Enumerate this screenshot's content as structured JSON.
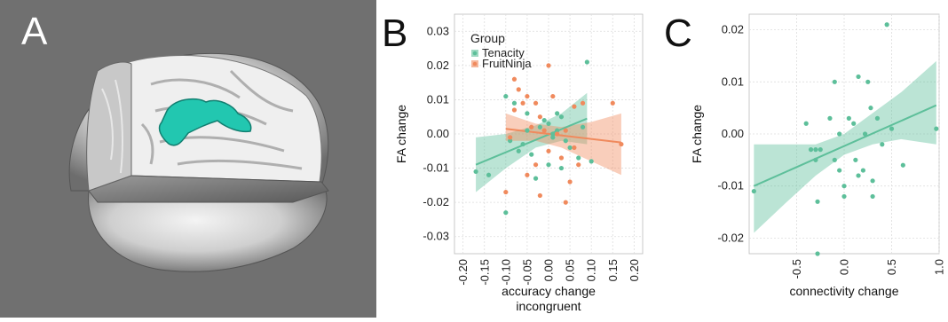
{
  "figure": {
    "panels": [
      {
        "letter": "A"
      },
      {
        "letter": "B"
      },
      {
        "letter": "C"
      }
    ]
  },
  "colors": {
    "tenacity": "#5dbf9a",
    "fruitninja": "#f08a5d",
    "brain_bg": "#707070",
    "grid": "#dddddd"
  },
  "chart_data": [
    {
      "type": "scatter",
      "panel": "B",
      "xlabel": "accuracy change incongruent",
      "xlabel_lines": [
        "accuracy change",
        "incongruent"
      ],
      "ylabel": "FA change",
      "xlim": [
        -0.22,
        0.22
      ],
      "ylim": [
        -0.035,
        0.035
      ],
      "xticks": [
        -0.2,
        -0.15,
        -0.1,
        -0.05,
        0.0,
        0.05,
        0.1,
        0.15,
        0.2
      ],
      "xtick_labels": [
        "-0.20",
        "-0.15",
        "-0.10",
        "-0.05",
        "0.00",
        "0.05",
        "0.10",
        "0.15",
        "0.20"
      ],
      "yticks": [
        -0.03,
        -0.02,
        -0.01,
        0.0,
        0.01,
        0.02,
        0.03
      ],
      "ytick_labels": [
        "-0.03",
        "-0.02",
        "-0.01",
        "0.00",
        "0.01",
        "0.02",
        "0.03"
      ],
      "grid": true,
      "legend": {
        "title": "Group",
        "position": "top-left",
        "entries": [
          "Tenacity",
          "FruitNinja"
        ]
      },
      "series": [
        {
          "name": "Tenacity",
          "points": [
            [
              -0.17,
              -0.011
            ],
            [
              -0.14,
              -0.012
            ],
            [
              -0.1,
              -0.023
            ],
            [
              -0.1,
              0.011
            ],
            [
              -0.09,
              -0.002
            ],
            [
              -0.08,
              0.009
            ],
            [
              -0.06,
              -0.003
            ],
            [
              -0.05,
              0.006
            ],
            [
              -0.05,
              0.001
            ],
            [
              -0.04,
              -0.006
            ],
            [
              -0.03,
              -0.013
            ],
            [
              -0.02,
              0.002
            ],
            [
              -0.01,
              0.004
            ],
            [
              0.0,
              0.003
            ],
            [
              0.01,
              0.0
            ],
            [
              0.01,
              -0.001
            ],
            [
              0.02,
              0.001
            ],
            [
              0.02,
              0.006
            ],
            [
              0.03,
              0.005
            ],
            [
              0.04,
              -0.002
            ],
            [
              0.05,
              -0.004
            ],
            [
              0.07,
              -0.007
            ],
            [
              0.08,
              0.002
            ],
            [
              0.09,
              0.021
            ],
            [
              0.1,
              -0.008
            ],
            [
              0.0,
              -0.009
            ],
            [
              -0.07,
              -0.005
            ],
            [
              0.03,
              -0.01
            ]
          ],
          "fit": {
            "x": [
              -0.17,
              0.09
            ],
            "y": [
              -0.009,
              0.0045
            ]
          },
          "ci_upper": [
            [
              -0.17,
              -0.001
            ],
            [
              -0.1,
              0.0
            ],
            [
              -0.03,
              0.0025
            ],
            [
              0.03,
              0.006
            ],
            [
              0.09,
              0.012
            ]
          ],
          "ci_lower": [
            [
              -0.17,
              -0.017
            ],
            [
              -0.1,
              -0.01
            ],
            [
              -0.03,
              -0.004
            ],
            [
              0.03,
              -0.002
            ],
            [
              0.09,
              -0.003
            ]
          ]
        },
        {
          "name": "FruitNinja",
          "points": [
            [
              -0.1,
              -0.017
            ],
            [
              -0.09,
              -0.001
            ],
            [
              -0.08,
              0.016
            ],
            [
              -0.07,
              0.013
            ],
            [
              -0.06,
              0.009
            ],
            [
              -0.05,
              0.011
            ],
            [
              -0.05,
              -0.012
            ],
            [
              -0.04,
              0.002
            ],
            [
              -0.03,
              0.009
            ],
            [
              -0.03,
              -0.009
            ],
            [
              -0.02,
              0.005
            ],
            [
              -0.02,
              -0.018
            ],
            [
              -0.01,
              0.001
            ],
            [
              0.0,
              0.02
            ],
            [
              0.0,
              -0.005
            ],
            [
              0.01,
              0.011
            ],
            [
              0.02,
              0.0
            ],
            [
              0.03,
              -0.007
            ],
            [
              0.04,
              -0.02
            ],
            [
              0.04,
              0.001
            ],
            [
              0.05,
              -0.014
            ],
            [
              0.06,
              0.008
            ],
            [
              0.06,
              -0.004
            ],
            [
              0.07,
              -0.009
            ],
            [
              0.08,
              0.009
            ],
            [
              0.15,
              0.009
            ],
            [
              0.17,
              -0.003
            ],
            [
              -0.08,
              0.007
            ]
          ],
          "fit": {
            "x": [
              -0.1,
              0.17
            ],
            "y": [
              0.0015,
              -0.0025
            ]
          },
          "ci_upper": [
            [
              -0.1,
              0.006
            ],
            [
              -0.03,
              0.003
            ],
            [
              0.03,
              0.002
            ],
            [
              0.1,
              0.0035
            ],
            [
              0.17,
              0.006
            ]
          ],
          "ci_lower": [
            [
              -0.1,
              -0.002
            ],
            [
              -0.03,
              -0.002
            ],
            [
              0.03,
              -0.004
            ],
            [
              0.1,
              -0.008
            ],
            [
              0.17,
              -0.012
            ]
          ]
        }
      ]
    },
    {
      "type": "scatter",
      "panel": "C",
      "xlabel": "connectivity change",
      "ylabel": "FA change",
      "xlim": [
        -1.0,
        1.0
      ],
      "ylim": [
        -0.023,
        0.023
      ],
      "xticks": [
        -0.5,
        0.0,
        0.5,
        1.0
      ],
      "xtick_labels": [
        "-0.5",
        "0.0",
        "0.5",
        "1.0"
      ],
      "yticks": [
        -0.02,
        -0.01,
        0.0,
        0.01,
        0.02
      ],
      "ytick_labels": [
        "-0.02",
        "-0.01",
        "0.00",
        "0.01",
        "0.02"
      ],
      "grid": true,
      "series": [
        {
          "name": "",
          "points": [
            [
              -0.95,
              -0.011
            ],
            [
              -0.4,
              0.002
            ],
            [
              -0.35,
              -0.003
            ],
            [
              -0.3,
              -0.003
            ],
            [
              -0.3,
              -0.005
            ],
            [
              -0.28,
              -0.013
            ],
            [
              -0.28,
              -0.023
            ],
            [
              -0.25,
              -0.003
            ],
            [
              -0.15,
              0.003
            ],
            [
              -0.1,
              0.01
            ],
            [
              -0.1,
              -0.005
            ],
            [
              -0.05,
              0.0
            ],
            [
              -0.05,
              -0.007
            ],
            [
              0.0,
              -0.01
            ],
            [
              0.0,
              -0.012
            ],
            [
              0.05,
              0.003
            ],
            [
              0.1,
              0.002
            ],
            [
              0.12,
              -0.005
            ],
            [
              0.15,
              0.011
            ],
            [
              0.15,
              -0.008
            ],
            [
              0.2,
              -0.007
            ],
            [
              0.22,
              0.0
            ],
            [
              0.25,
              0.01
            ],
            [
              0.28,
              0.005
            ],
            [
              0.3,
              -0.009
            ],
            [
              0.3,
              -0.012
            ],
            [
              0.35,
              0.003
            ],
            [
              0.4,
              -0.002
            ],
            [
              0.45,
              0.021
            ],
            [
              0.5,
              0.001
            ],
            [
              0.62,
              -0.006
            ],
            [
              0.97,
              0.001
            ]
          ],
          "fit": {
            "x": [
              -0.95,
              0.97
            ],
            "y": [
              -0.01,
              0.0055
            ]
          },
          "ci_upper": [
            [
              -0.95,
              -0.002
            ],
            [
              -0.6,
              -0.002
            ],
            [
              -0.3,
              -0.002
            ],
            [
              0.0,
              0.0
            ],
            [
              0.3,
              0.004
            ],
            [
              0.6,
              0.008
            ],
            [
              0.97,
              0.014
            ]
          ],
          "ci_lower": [
            [
              -0.95,
              -0.019
            ],
            [
              -0.6,
              -0.013
            ],
            [
              -0.3,
              -0.008
            ],
            [
              0.0,
              -0.004
            ],
            [
              0.3,
              -0.002
            ],
            [
              0.6,
              -0.001
            ],
            [
              0.97,
              -0.002
            ]
          ]
        }
      ]
    }
  ]
}
